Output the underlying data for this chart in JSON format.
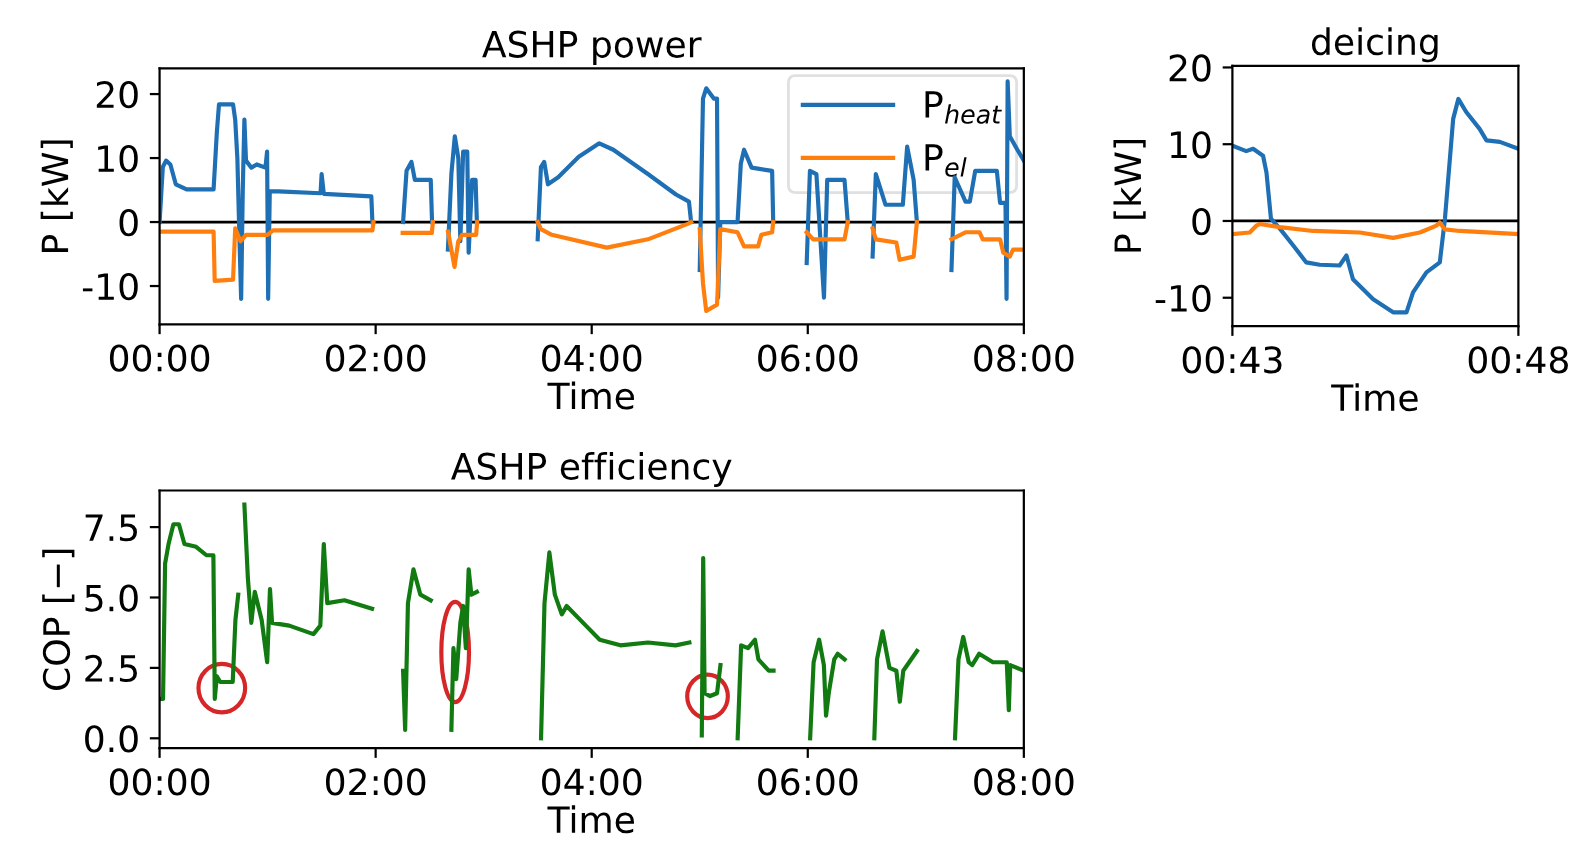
{
  "chart_data": [
    {
      "type": "line",
      "title": "ASHP power",
      "xlabel": "Time",
      "ylabel": "P [kW]",
      "xlim": [
        0,
        8
      ],
      "xticks": [
        {
          "value": 0,
          "label": "00:00"
        },
        {
          "value": 2,
          "label": "02:00"
        },
        {
          "value": 4,
          "label": "04:00"
        },
        {
          "value": 6,
          "label": "06:00"
        },
        {
          "value": 8,
          "label": "08:00"
        }
      ],
      "ylim": [
        -16,
        24
      ],
      "yticks": [
        -10,
        0,
        10,
        20
      ],
      "legend": "top right",
      "grid": false,
      "ref_lines": [
        {
          "axis": "y",
          "value": 0,
          "color": "#000000"
        }
      ],
      "series": [
        {
          "name": "P$_{heat}$",
          "color": "#1f6fb4",
          "x": [
            0,
            0.03,
            0.06,
            0.1,
            0.15,
            0.25,
            0.5,
            0.53,
            0.55,
            0.68,
            0.7,
            0.72,
            0.74,
            0.755,
            0.77,
            0.785,
            0.8,
            0.85,
            0.9,
            0.98,
            0.995,
            1.005,
            1.02,
            1.1,
            1.49,
            1.5,
            1.52,
            1.96,
            1.97,
            2.1,
            2.254,
            2.286,
            2.331,
            2.363,
            2.51,
            2.522,
            2.6,
            2.669,
            2.701,
            2.733,
            2.765,
            2.784,
            2.81,
            2.848,
            2.861,
            2.893,
            2.925,
            2.937,
            3.2,
            3.5,
            3.53,
            3.56,
            3.595,
            3.69,
            3.88,
            4.07,
            4.2,
            4.52,
            4.78,
            4.9,
            4.92,
            4.95,
            5.0,
            5.03,
            5.06,
            5.13,
            5.16,
            5.17,
            5.19,
            5.35,
            5.38,
            5.41,
            5.48,
            5.67,
            5.68,
            5.8,
            5.99,
            6.02,
            6.08,
            6.15,
            6.18,
            6.34,
            6.37,
            6.5,
            6.6,
            6.63,
            6.72,
            6.88,
            6.92,
            6.98,
            7.01,
            7.2,
            7.33,
            7.36,
            7.46,
            7.5,
            7.55,
            7.75,
            7.78,
            7.83,
            7.84,
            7.85,
            7.87,
            7.94,
            8.0
          ],
          "values": [
            0,
            8.6,
            9.6,
            9.0,
            5.9,
            5.1,
            5.1,
            14,
            18.4,
            18.4,
            16,
            10,
            -3,
            -12,
            5,
            16,
            9.6,
            8.5,
            9.0,
            8.5,
            11,
            -12,
            4.8,
            4.8,
            4.5,
            7.5,
            4.4,
            4.0,
            0,
            null,
            0,
            8,
            9.4,
            6.6,
            6.6,
            0,
            null,
            -4.3,
            7.5,
            13.4,
            10,
            -3,
            11,
            11,
            -4.8,
            6.6,
            6.6,
            0,
            null,
            -2.7,
            8.6,
            9.4,
            5.9,
            7,
            10.2,
            12.3,
            11.3,
            7.5,
            4.3,
            3.2,
            0,
            null,
            -7.5,
            19.3,
            20.9,
            19.3,
            19.3,
            -11.8,
            0,
            0,
            9.1,
            11.3,
            8.5,
            8,
            0,
            null,
            -6.4,
            8,
            7.5,
            -11.8,
            6.6,
            6.6,
            0,
            null,
            -5.4,
            7.5,
            2.7,
            2.7,
            11.8,
            6.6,
            0,
            null,
            -7.5,
            7,
            3.2,
            3.2,
            8,
            8,
            3,
            3,
            -12,
            22,
            13.4,
            11.3,
            9.6
          ]
        },
        {
          "name": "P$_{el}$",
          "color": "#ff7f0e",
          "x": [
            0,
            0.5,
            0.51,
            0.68,
            0.7,
            0.75,
            0.8,
            1.0,
            1.05,
            1.97,
            1.98,
            2.1,
            2.25,
            2.52,
            2.53,
            2.6,
            2.67,
            2.73,
            2.765,
            2.8,
            2.93,
            2.94,
            3.2,
            3.5,
            3.53,
            3.63,
            4.14,
            4.52,
            4.9,
            4.92,
            4.95,
            5.0,
            5.03,
            5.06,
            5.16,
            5.19,
            5.35,
            5.41,
            5.54,
            5.57,
            5.67,
            5.68,
            5.8,
            5.99,
            6.05,
            6.34,
            6.37,
            6.5,
            6.6,
            6.63,
            6.82,
            6.85,
            6.98,
            7.01,
            7.2,
            7.33,
            7.46,
            7.59,
            7.62,
            7.78,
            7.81,
            7.87,
            7.9,
            8.0
          ],
          "values": [
            -1.5,
            -1.5,
            -9.2,
            -9.0,
            -1.0,
            -3,
            -2.0,
            -2.0,
            -1.3,
            -1.3,
            0,
            null,
            -1.7,
            -1.7,
            0,
            null,
            -1.5,
            -7,
            -3,
            -2,
            -2,
            0,
            null,
            0,
            -1.1,
            -2,
            -4,
            -2.7,
            -0.2,
            0,
            null,
            -1.1,
            -9.6,
            -13.9,
            -12.9,
            -1.1,
            -1.6,
            -3.8,
            -3.8,
            -2,
            -1.6,
            0,
            null,
            -1.6,
            -2.7,
            -2.7,
            0,
            null,
            -1,
            -2.7,
            -3.2,
            -5.9,
            -5.4,
            0,
            null,
            -2.7,
            -1.6,
            -1.6,
            -2.7,
            -2.7,
            -4.8,
            -5.4,
            -4.3,
            -4.3
          ]
        }
      ]
    },
    {
      "type": "line",
      "title": "deicing",
      "xlabel": "Time",
      "ylabel": "P [kW]",
      "xlim": [
        0.716667,
        0.8
      ],
      "xticks": [
        {
          "value": 0.716667,
          "label": "00:43"
        },
        {
          "value": 0.8,
          "label": "00:48"
        }
      ],
      "ylim": [
        -13.7,
        20.2
      ],
      "yticks": [
        -10,
        0,
        10,
        20
      ],
      "grid": false,
      "ref_lines": [
        {
          "axis": "y",
          "value": 0,
          "color": "#000000"
        }
      ],
      "series": [
        {
          "color": "#1f6fb4",
          "x": [
            0.7167,
            0.7207,
            0.7227,
            0.7256,
            0.7266,
            0.7279,
            0.7305,
            0.7344,
            0.7382,
            0.7421,
            0.7479,
            0.7499,
            0.7518,
            0.7577,
            0.7635,
            0.7674,
            0.7693,
            0.7732,
            0.7771,
            0.7786,
            0.781,
            0.7825,
            0.7848,
            0.7887,
            0.7907,
            0.7946,
            0.8
          ],
          "values": [
            9.8,
            9.1,
            9.4,
            8.5,
            6.3,
            0.3,
            -1,
            -3.2,
            -5.4,
            -5.7,
            -5.8,
            -4.5,
            -7.6,
            -10.2,
            -11.9,
            -11.9,
            -9.3,
            -6.7,
            -5.4,
            0.3,
            13.3,
            15.9,
            14.2,
            12,
            10.5,
            10.3,
            9.4
          ]
        },
        {
          "color": "#ff7f0e",
          "x": [
            0.7167,
            0.7217,
            0.7237,
            0.7246,
            0.7305,
            0.7402,
            0.7538,
            0.7635,
            0.7713,
            0.7761,
            0.7771,
            0.7786,
            0.7829,
            0.8
          ],
          "values": [
            -1.7,
            -1.5,
            -0.6,
            -0.4,
            -0.8,
            -1.3,
            -1.5,
            -2.2,
            -1.5,
            -0.6,
            -0.2,
            -1.1,
            -1.3,
            -1.7
          ]
        }
      ]
    },
    {
      "type": "line",
      "title": "ASHP efficiency",
      "xlabel": "Time",
      "ylabel": "COP [−]",
      "xlim": [
        0,
        8
      ],
      "xticks": [
        {
          "value": 0,
          "label": "00:00"
        },
        {
          "value": 2,
          "label": "02:00"
        },
        {
          "value": 4,
          "label": "04:00"
        },
        {
          "value": 6,
          "label": "06:00"
        },
        {
          "value": 8,
          "label": "08:00"
        }
      ],
      "ylim": [
        -0.35,
        8.8
      ],
      "yticks": [
        {
          "value": 0,
          "label": "0.0"
        },
        2.5,
        {
          "value": 5,
          "label": "5.0"
        },
        7.5
      ],
      "grid": false,
      "series": [
        {
          "color": "#117a11",
          "x": [
            0,
            0.032,
            0.051,
            0.083,
            0.128,
            0.179,
            0.23,
            0.338,
            0.434,
            0.498,
            0.511,
            0.53,
            0.562,
            0.677,
            0.702,
            0.728,
            0.75,
            0.785,
            0.817,
            0.849,
            0.881,
            0.945,
            0.996,
            1.022,
            1.041,
            1.2,
            1.424,
            1.488,
            1.52,
            1.552,
            1.711,
            1.967,
            2.1,
            2.254,
            2.273,
            2.299,
            2.35,
            2.414,
            2.51,
            2.6,
            2.701,
            2.72,
            2.746,
            2.784,
            2.81,
            2.835,
            2.861,
            2.886,
            2.937,
            3.2,
            3.531,
            3.563,
            3.608,
            3.659,
            3.723,
            3.768,
            3.946,
            4.074,
            4.266,
            4.521,
            4.776,
            4.904,
            4.95,
            5.019,
            5.032,
            5.045,
            5.096,
            5.16,
            5.192,
            5.25,
            5.351,
            5.383,
            5.447,
            5.511,
            5.543,
            5.639,
            5.683,
            5.8,
            6.022,
            6.054,
            6.105,
            6.149,
            6.169,
            6.194,
            6.245,
            6.277,
            6.341,
            6.5,
            6.616,
            6.641,
            6.692,
            6.756,
            6.82,
            6.852,
            6.884,
            7.011,
            7.2,
            7.363,
            7.395,
            7.439,
            7.49,
            7.522,
            7.586,
            7.714,
            7.842,
            7.861,
            7.874,
            8.0
          ],
          "values": [
            1.4,
            1.4,
            6.2,
            6.9,
            7.6,
            7.6,
            6.9,
            6.8,
            6.5,
            6.5,
            1.4,
            2.2,
            2.0,
            2.0,
            4.2,
            5.1,
            null,
            8.3,
            5.7,
            4.1,
            5.2,
            4.2,
            2.7,
            5.3,
            4.1,
            4.0,
            3.7,
            4.0,
            6.9,
            4.8,
            4.9,
            4.6,
            null,
            2.4,
            0.3,
            4.8,
            6.0,
            5.1,
            4.9,
            null,
            0.3,
            3.2,
            2.1,
            4.1,
            4.7,
            3.2,
            6.0,
            5.1,
            5.2,
            null,
            0,
            4.8,
            6.6,
            5.1,
            4.4,
            4.7,
            4.0,
            3.5,
            3.3,
            3.4,
            3.3,
            3.4,
            null,
            0.1,
            6.4,
            1.6,
            1.5,
            1.6,
            2.6,
            null,
            0,
            3.3,
            3.2,
            3.5,
            2.8,
            2.4,
            2.4,
            null,
            0,
            2.7,
            3.5,
            2.6,
            0.8,
            1.6,
            2.8,
            3.0,
            2.8,
            null,
            0,
            2.8,
            3.8,
            2.5,
            2.4,
            1.3,
            2.4,
            3.1,
            null,
            0,
            2.8,
            3.6,
            2.7,
            2.6,
            3.0,
            2.7,
            2.7,
            1.0,
            2.6,
            2.4
          ]
        }
      ]
    }
  ]
}
